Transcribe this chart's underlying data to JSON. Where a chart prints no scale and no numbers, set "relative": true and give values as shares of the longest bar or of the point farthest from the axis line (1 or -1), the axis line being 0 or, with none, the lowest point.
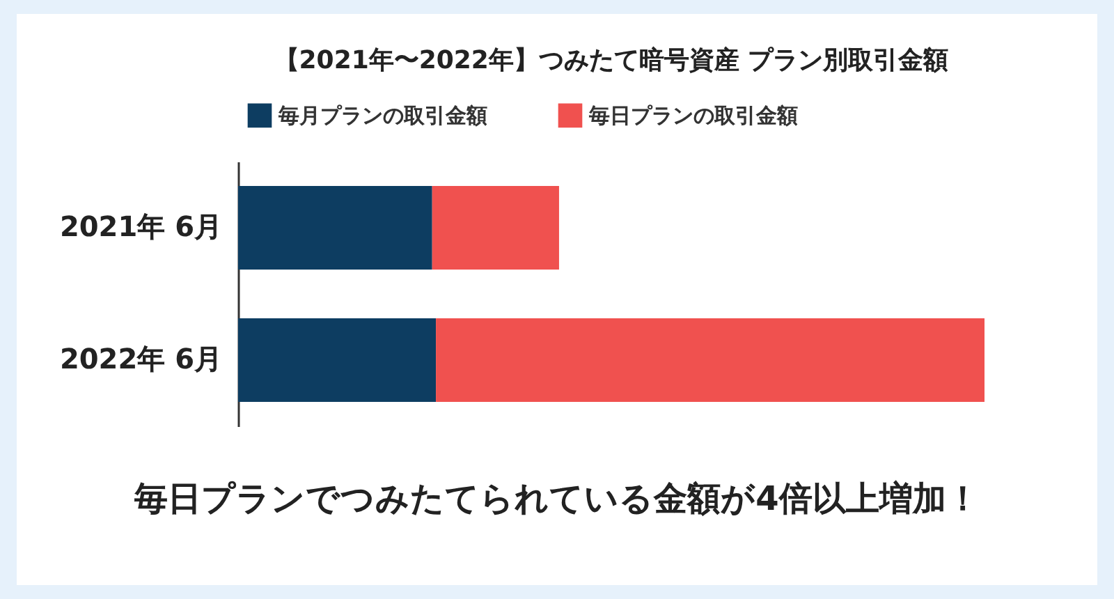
{
  "chart_data": {
    "type": "bar",
    "orientation": "horizontal",
    "stacked": true,
    "relative": true,
    "title": "【2021年〜2022年】つみたて暗号資産 プラン別取引金額",
    "categories": [
      "2021年 6月",
      "2022年 6月"
    ],
    "series": [
      {
        "name": "毎月プランの取引金額",
        "color": "#0d3d61",
        "values": [
          0.26,
          0.265
        ]
      },
      {
        "name": "毎日プランの取引金額",
        "color": "#f0514f",
        "values": [
          0.17,
          0.735
        ]
      }
    ],
    "legend": "top",
    "annotations": [
      "毎日プランでつみたてられている金額が4倍以上増加！"
    ]
  }
}
